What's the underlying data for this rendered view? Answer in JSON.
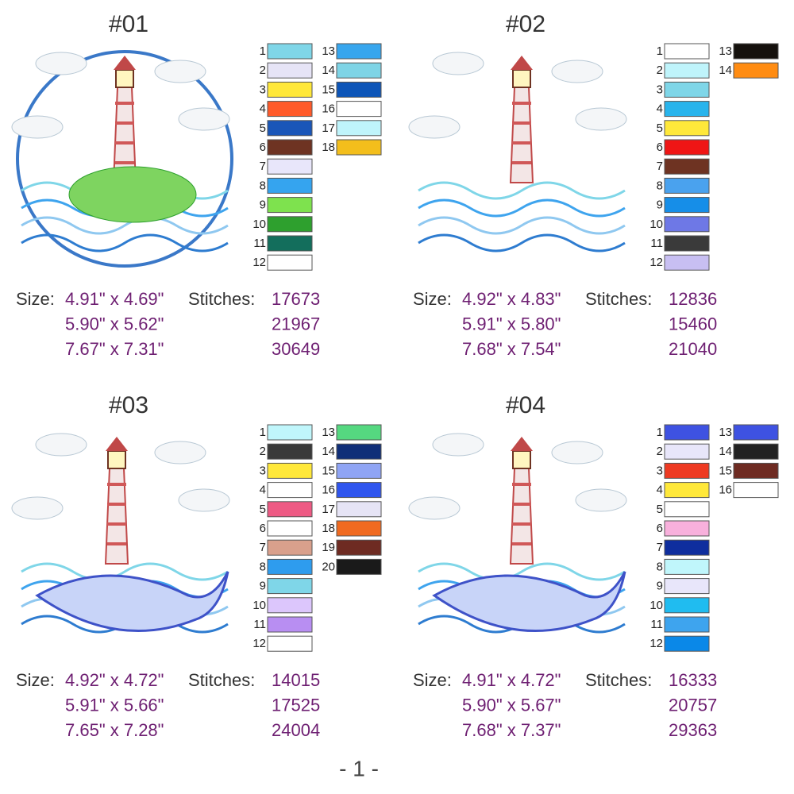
{
  "size_label": "Size:",
  "stitches_label": "Stitches:",
  "page_number": "- 1 -",
  "designs": [
    {
      "title": "#01",
      "colors": [
        {
          "number": 1,
          "color": "#7fd6e8"
        },
        {
          "number": 2,
          "color": "#e6e4f6"
        },
        {
          "number": 3,
          "color": "#ffe83a"
        },
        {
          "number": 4,
          "color": "#ff5a2a"
        },
        {
          "number": 5,
          "color": "#1a56b8"
        },
        {
          "number": 6,
          "color": "#6e3322"
        },
        {
          "number": 7,
          "color": "#e8e6fa"
        },
        {
          "number": 8,
          "color": "#35a4ef"
        },
        {
          "number": 9,
          "color": "#7ee24e"
        },
        {
          "number": 10,
          "color": "#2ea02e"
        },
        {
          "number": 11,
          "color": "#136e5c"
        },
        {
          "number": 12,
          "color": "#ffffff"
        },
        {
          "number": 13,
          "color": "#37a6ee"
        },
        {
          "number": 14,
          "color": "#7ed4e6"
        },
        {
          "number": 15,
          "color": "#0d55b8"
        },
        {
          "number": 16,
          "color": "#ffffff"
        },
        {
          "number": 17,
          "color": "#bff4fb"
        },
        {
          "number": 18,
          "color": "#f3be1c"
        }
      ],
      "sizes": [
        "4.91\" x 4.69\"",
        "5.90\" x 5.62\"",
        "7.67\" x 7.31\""
      ],
      "stitches": [
        "17673",
        "21967",
        "30649"
      ]
    },
    {
      "title": "#02",
      "colors": [
        {
          "number": 1,
          "color": "#ffffff"
        },
        {
          "number": 2,
          "color": "#bff4fb"
        },
        {
          "number": 3,
          "color": "#7fd6e8"
        },
        {
          "number": 4,
          "color": "#28b4ec"
        },
        {
          "number": 5,
          "color": "#ffe83a"
        },
        {
          "number": 6,
          "color": "#ef1515"
        },
        {
          "number": 7,
          "color": "#6e3322"
        },
        {
          "number": 8,
          "color": "#4aa2ee"
        },
        {
          "number": 9,
          "color": "#168ee8"
        },
        {
          "number": 10,
          "color": "#6e78e6"
        },
        {
          "number": 11,
          "color": "#3a3a3a"
        },
        {
          "number": 12,
          "color": "#c8bff2"
        },
        {
          "number": 13,
          "color": "#15110d"
        },
        {
          "number": 14,
          "color": "#ff8c12"
        }
      ],
      "sizes": [
        "4.92\" x 4.83\"",
        "5.91\" x 5.80\"",
        "7.68\" x 7.54\""
      ],
      "stitches": [
        "12836",
        "15460",
        "21040"
      ]
    },
    {
      "title": "#03",
      "colors": [
        {
          "number": 1,
          "color": "#c0f6fb"
        },
        {
          "number": 2,
          "color": "#3a3a3a"
        },
        {
          "number": 3,
          "color": "#ffe83a"
        },
        {
          "number": 4,
          "color": "#ffffff"
        },
        {
          "number": 5,
          "color": "#ee5a84"
        },
        {
          "number": 6,
          "color": "#ffffff"
        },
        {
          "number": 7,
          "color": "#d9a08c"
        },
        {
          "number": 8,
          "color": "#2e9cee"
        },
        {
          "number": 9,
          "color": "#7fd6e8"
        },
        {
          "number": 10,
          "color": "#dcc6fc"
        },
        {
          "number": 11,
          "color": "#b88ef2"
        },
        {
          "number": 12,
          "color": "#ffffff"
        },
        {
          "number": 13,
          "color": "#55d880"
        },
        {
          "number": 14,
          "color": "#0f2e78"
        },
        {
          "number": 15,
          "color": "#8fa4f4"
        },
        {
          "number": 16,
          "color": "#2f55ee"
        },
        {
          "number": 17,
          "color": "#e6e4f6"
        },
        {
          "number": 18,
          "color": "#f06a20"
        },
        {
          "number": 19,
          "color": "#6e2b22"
        },
        {
          "number": 20,
          "color": "#1a1a1a"
        }
      ],
      "sizes": [
        "4.92\" x 4.72\"",
        "5.91\" x 5.66\"",
        "7.65\" x 7.28\""
      ],
      "stitches": [
        "14015",
        "17525",
        "24004"
      ]
    },
    {
      "title": "#04",
      "colors": [
        {
          "number": 1,
          "color": "#3e52e2"
        },
        {
          "number": 2,
          "color": "#e8e6fa"
        },
        {
          "number": 3,
          "color": "#ee3a22"
        },
        {
          "number": 4,
          "color": "#ffe83a"
        },
        {
          "number": 5,
          "color": "#ffffff"
        },
        {
          "number": 6,
          "color": "#f8b0dc"
        },
        {
          "number": 7,
          "color": "#0f2e9e"
        },
        {
          "number": 8,
          "color": "#c0f6fb"
        },
        {
          "number": 9,
          "color": "#e8e6fa"
        },
        {
          "number": 10,
          "color": "#20bcf0"
        },
        {
          "number": 11,
          "color": "#3ea4ee"
        },
        {
          "number": 12,
          "color": "#0a88e8"
        },
        {
          "number": 13,
          "color": "#3e52e2"
        },
        {
          "number": 14,
          "color": "#222222"
        },
        {
          "number": 15,
          "color": "#6e2b22"
        },
        {
          "number": 16,
          "color": "#ffffff"
        }
      ],
      "sizes": [
        "4.91\" x 4.72\"",
        "5.90\" x 5.67\"",
        "7.68\" x 7.37\""
      ],
      "stitches": [
        "16333",
        "20757",
        "29363"
      ]
    }
  ]
}
